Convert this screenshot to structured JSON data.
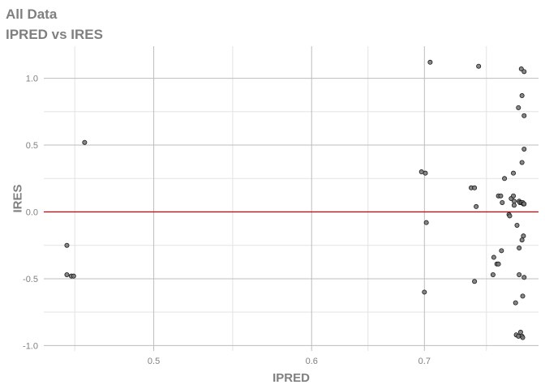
{
  "header": {
    "title": "All Data",
    "subtitle": "IPRED vs IRES"
  },
  "colors": {
    "point_fill": "#7a7a7a",
    "point_stroke": "#1a1a1a",
    "ref_line": "#cc0000",
    "major_grid": "#bdbdbd",
    "minor_grid": "#e3e3e3",
    "text": "#7f7f7f"
  },
  "chart_data": {
    "type": "scatter",
    "title": "All Data",
    "subtitle": "IPRED vs IRES",
    "xlabel": "IPRED",
    "ylabel": "IRES",
    "xlim": [
      0.448,
      0.842
    ],
    "ylim": [
      -1.04,
      1.24
    ],
    "x_scale": "reciprocal",
    "x_ticks": [
      0.5,
      0.6,
      0.7
    ],
    "y_ticks": [
      -1.0,
      -0.5,
      0.0,
      0.5,
      1.0
    ],
    "x_tick_labels": [
      "0.5",
      "0.6",
      "0.7"
    ],
    "y_tick_labels": [
      "-1.0",
      "-0.5",
      "0.0",
      "0.5",
      "1.0"
    ],
    "reference_line": {
      "y": 0
    },
    "grid": true,
    "legend": "none",
    "points": [
      {
        "x": 0.458,
        "y": -0.25
      },
      {
        "x": 0.458,
        "y": -0.47
      },
      {
        "x": 0.46,
        "y": -0.48
      },
      {
        "x": 0.461,
        "y": -0.48
      },
      {
        "x": 0.466,
        "y": 0.52
      },
      {
        "x": 0.697,
        "y": 0.3
      },
      {
        "x": 0.701,
        "y": 0.29
      },
      {
        "x": 0.702,
        "y": -0.08
      },
      {
        "x": 0.7,
        "y": -0.6
      },
      {
        "x": 0.706,
        "y": 1.12
      },
      {
        "x": 0.752,
        "y": 0.18
      },
      {
        "x": 0.756,
        "y": 0.18
      },
      {
        "x": 0.758,
        "y": 0.04
      },
      {
        "x": 0.756,
        "y": -0.52
      },
      {
        "x": 0.761,
        "y": 1.09
      },
      {
        "x": 0.779,
        "y": -0.47
      },
      {
        "x": 0.78,
        "y": -0.34
      },
      {
        "x": 0.784,
        "y": -0.39
      },
      {
        "x": 0.786,
        "y": -0.39
      },
      {
        "x": 0.786,
        "y": 0.12
      },
      {
        "x": 0.789,
        "y": 0.12
      },
      {
        "x": 0.79,
        "y": -0.29
      },
      {
        "x": 0.791,
        "y": 0.07
      },
      {
        "x": 0.794,
        "y": 0.25
      },
      {
        "x": 0.8,
        "y": -0.02
      },
      {
        "x": 0.801,
        "y": -0.03
      },
      {
        "x": 0.803,
        "y": 0.1
      },
      {
        "x": 0.806,
        "y": 0.29
      },
      {
        "x": 0.806,
        "y": 0.12
      },
      {
        "x": 0.807,
        "y": 0.08
      },
      {
        "x": 0.807,
        "y": 0.05
      },
      {
        "x": 0.809,
        "y": -0.68
      },
      {
        "x": 0.811,
        "y": -0.1
      },
      {
        "x": 0.81,
        "y": -0.92
      },
      {
        "x": 0.813,
        "y": -0.93
      },
      {
        "x": 0.813,
        "y": 0.78
      },
      {
        "x": 0.814,
        "y": 0.08
      },
      {
        "x": 0.814,
        "y": -0.27
      },
      {
        "x": 0.814,
        "y": -0.47
      },
      {
        "x": 0.815,
        "y": 0.07
      },
      {
        "x": 0.816,
        "y": -0.9
      },
      {
        "x": 0.817,
        "y": 0.07
      },
      {
        "x": 0.817,
        "y": 1.07
      },
      {
        "x": 0.818,
        "y": 0.87
      },
      {
        "x": 0.818,
        "y": 0.37
      },
      {
        "x": 0.818,
        "y": -0.21
      },
      {
        "x": 0.818,
        "y": -0.93
      },
      {
        "x": 0.819,
        "y": 0.07
      },
      {
        "x": 0.819,
        "y": -0.63
      },
      {
        "x": 0.819,
        "y": -0.94
      },
      {
        "x": 0.82,
        "y": 0.06
      },
      {
        "x": 0.82,
        "y": -0.18
      },
      {
        "x": 0.821,
        "y": 0.47
      },
      {
        "x": 0.821,
        "y": 1.05
      },
      {
        "x": 0.821,
        "y": 0.72
      },
      {
        "x": 0.821,
        "y": -0.49
      },
      {
        "x": 0.821,
        "y": 0.06
      }
    ]
  }
}
